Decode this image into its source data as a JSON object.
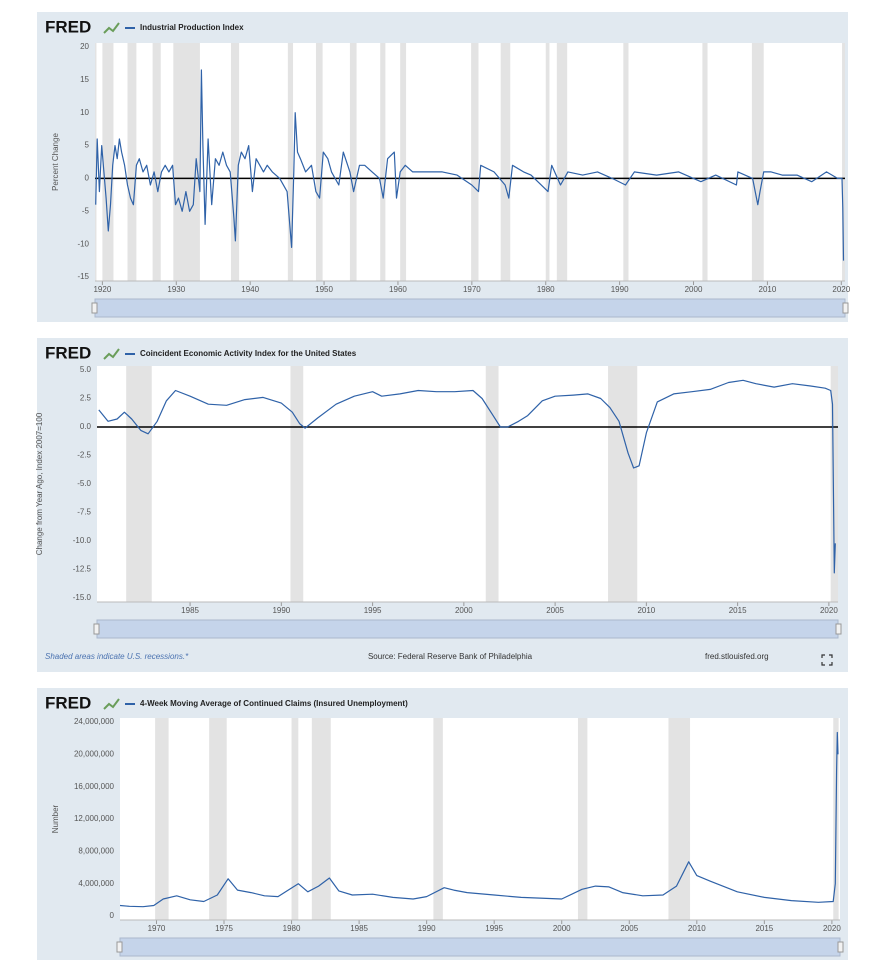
{
  "logo": "FRED",
  "chart_data": [
    {
      "type": "line",
      "ylabel": "Percent Change",
      "x": [
        1919.1,
        1919.3,
        1919.6,
        1919.9,
        1920.2,
        1920.5,
        1920.8,
        1921.1,
        1921.4,
        1921.7,
        1922.0,
        1922.3,
        1922.6,
        1923.0,
        1923.4,
        1923.8,
        1924.2,
        1924.6,
        1925.0,
        1925.5,
        1926.0,
        1926.5,
        1927.0,
        1927.5,
        1928.0,
        1928.5,
        1929.0,
        1929.5,
        1929.9,
        1930.3,
        1930.8,
        1931.3,
        1931.8,
        1932.3,
        1932.7,
        1933.2,
        1933.4,
        1933.6,
        1933.9,
        1934.3,
        1934.8,
        1935.3,
        1935.8,
        1936.3,
        1936.8,
        1937.3,
        1937.8,
        1938.0,
        1938.4,
        1938.8,
        1939.3,
        1939.8,
        1940.3,
        1940.8,
        1941.3,
        1941.8,
        1942.3,
        1943.0,
        1944.0,
        1945.0,
        1945.6,
        1945.9,
        1946.1,
        1946.4,
        1946.8,
        1947.5,
        1948.3,
        1948.9,
        1949.4,
        1949.9,
        1950.5,
        1951.0,
        1952.0,
        1952.6,
        1953.5,
        1954.0,
        1954.8,
        1955.5,
        1956.5,
        1957.5,
        1958.0,
        1958.6,
        1959.5,
        1959.8,
        1960.3,
        1961.0,
        1962.0,
        1964.0,
        1966.0,
        1968.0,
        1970.0,
        1970.9,
        1971.2,
        1973.0,
        1974.5,
        1975.0,
        1975.5,
        1977.0,
        1978.0,
        1980.3,
        1980.8,
        1982.0,
        1983.0,
        1985.0,
        1987.0,
        1989.0,
        1990.8,
        1992.0,
        1995.0,
        1998.0,
        2001.0,
        2003.0,
        2005.8,
        2006.0,
        2008.0,
        2008.7,
        2009.0,
        2009.5,
        2010.5,
        2012.0,
        2014.0,
        2016.0,
        2018.0,
        2019.5,
        2020.1,
        2020.2,
        2020.3
      ],
      "series": [
        {
          "name": "Industrial Production Index",
          "color": "#2f62a8",
          "values": [
            -4,
            6,
            -2,
            5,
            1,
            -3,
            -8,
            -4,
            2,
            5,
            3,
            6,
            4,
            2,
            -1,
            -3,
            -4,
            2,
            3,
            1,
            2,
            -1,
            1,
            -2,
            1,
            2,
            1,
            2,
            -4,
            -3,
            -5,
            -2,
            -5,
            -4,
            3,
            -2,
            16.5,
            5,
            -7,
            6,
            -4,
            3,
            2,
            4,
            2,
            1,
            -6,
            -9.5,
            2,
            4,
            3,
            5,
            -2,
            3,
            2,
            1,
            2,
            1,
            0,
            -2,
            -10.5,
            1,
            10,
            4,
            3,
            1,
            2,
            -2,
            -3,
            4,
            3,
            1,
            -1,
            4,
            1,
            -2,
            2,
            2,
            1,
            0,
            -3,
            3,
            4,
            -3,
            1,
            2,
            1,
            1,
            1,
            0.5,
            -1,
            -2,
            2,
            1,
            -1,
            -3,
            2,
            1,
            0.5,
            -2,
            2,
            -1,
            1,
            0.5,
            1,
            0,
            -1,
            1,
            0.5,
            1,
            -0.5,
            0.5,
            -1,
            1,
            0,
            -4,
            -2,
            1,
            1,
            0.5,
            0.5,
            -0.5,
            1,
            0,
            0,
            -4.5,
            -12.5
          ]
        }
      ],
      "xlim": [
        1919,
        2020.5
      ],
      "ylim": [
        -15,
        20
      ],
      "xticks": [
        1920,
        1930,
        1940,
        1950,
        1960,
        1970,
        1980,
        1990,
        2000,
        2010,
        2020
      ],
      "yticks": [
        -15,
        -10,
        -5,
        0,
        5,
        10,
        15,
        20
      ],
      "zero_line": true,
      "recessions": [
        [
          1918.7,
          1919.2
        ],
        [
          1920.0,
          1921.5
        ],
        [
          1923.4,
          1924.6
        ],
        [
          1926.8,
          1927.9
        ],
        [
          1929.6,
          1933.2
        ],
        [
          1937.4,
          1938.5
        ],
        [
          1945.1,
          1945.8
        ],
        [
          1948.9,
          1949.8
        ],
        [
          1953.5,
          1954.4
        ],
        [
          1957.6,
          1958.3
        ],
        [
          1960.3,
          1961.1
        ],
        [
          1969.9,
          1970.9
        ],
        [
          1973.9,
          1975.2
        ],
        [
          1980.0,
          1980.5
        ],
        [
          1981.5,
          1982.9
        ],
        [
          1990.5,
          1991.2
        ],
        [
          2001.2,
          2001.9
        ],
        [
          2007.9,
          2009.5
        ],
        [
          2020.1,
          2020.5
        ]
      ]
    },
    {
      "type": "line",
      "ylabel": "Change from Year Ago, Index 2007=100",
      "x": [
        1980.0,
        1980.5,
        1981.0,
        1981.4,
        1981.8,
        1982.3,
        1982.7,
        1983.2,
        1983.7,
        1984.2,
        1985.0,
        1986.0,
        1987.0,
        1988.0,
        1989.0,
        1990.0,
        1990.6,
        1991.0,
        1991.3,
        1992.0,
        1993.0,
        1994.0,
        1995.0,
        1995.5,
        1996.5,
        1997.5,
        1998.5,
        1999.5,
        2000.5,
        2001.0,
        2001.6,
        2002.0,
        2002.4,
        2003.0,
        2003.5,
        2004.3,
        2005.0,
        2006.0,
        2006.8,
        2007.5,
        2008.0,
        2008.5,
        2009.0,
        2009.3,
        2009.6,
        2010.0,
        2010.6,
        2011.5,
        2012.5,
        2013.5,
        2014.5,
        2015.3,
        2016.0,
        2017.0,
        2018.0,
        2019.0,
        2019.8,
        2020.1,
        2020.2,
        2020.3,
        2020.35
      ],
      "series": [
        {
          "name": "Coincident Economic Activity Index for the United States",
          "color": "#2f62a8",
          "values": [
            1.5,
            0.5,
            0.7,
            1.3,
            0.7,
            -0.3,
            -0.6,
            0.5,
            2.3,
            3.2,
            2.7,
            2.0,
            1.9,
            2.4,
            2.6,
            2.1,
            1.3,
            0.3,
            -0.1,
            0.8,
            2.0,
            2.7,
            3.1,
            2.7,
            2.9,
            3.2,
            3.1,
            3.1,
            3.2,
            2.5,
            1.0,
            0.0,
            0.0,
            0.5,
            1.0,
            2.3,
            2.7,
            2.8,
            2.9,
            2.5,
            1.7,
            0.5,
            -2.3,
            -3.6,
            -3.4,
            -0.5,
            2.2,
            2.9,
            3.1,
            3.3,
            3.9,
            4.1,
            3.8,
            3.5,
            3.8,
            3.6,
            3.4,
            3.2,
            2.0,
            -12.8,
            -10.2
          ]
        }
      ],
      "xlim": [
        1979.9,
        2020.5
      ],
      "ylim": [
        -15,
        5
      ],
      "xticks": [
        1985,
        1990,
        1995,
        2000,
        2005,
        2010,
        2015,
        2020
      ],
      "yticks": [
        {
          "value": -15,
          "label": "-15.0"
        },
        -12.5,
        {
          "value": -10,
          "label": "-10.0"
        },
        -7.5,
        {
          "value": -5,
          "label": "-5.0"
        },
        -2.5,
        {
          "value": 0,
          "label": "0.0"
        },
        2.5,
        {
          "value": 5,
          "label": "5.0"
        }
      ],
      "zero_line": true,
      "recessions": [
        [
          1981.5,
          1982.9
        ],
        [
          1990.5,
          1991.2
        ],
        [
          2001.2,
          2001.9
        ],
        [
          2007.9,
          2009.5
        ],
        [
          2020.1,
          2020.5
        ]
      ],
      "note": "Shaded areas indicate U.S. recessions.*",
      "source": "Source: Federal Reserve Bank of Philadelphia",
      "site": "fred.stlouisfed.org"
    },
    {
      "type": "line",
      "ylabel": "Number",
      "x": [
        1967.3,
        1968,
        1969,
        1969.8,
        1970.5,
        1971.5,
        1972.5,
        1973.5,
        1974.5,
        1975.3,
        1976,
        1977,
        1978,
        1979,
        1980.5,
        1981.2,
        1982.0,
        1982.8,
        1983.5,
        1984.5,
        1986,
        1987.5,
        1989,
        1990,
        1991.3,
        1992,
        1993,
        1995,
        1997,
        2000,
        2001.5,
        2002.5,
        2003.5,
        2004.5,
        2006,
        2007.5,
        2008.5,
        2009.4,
        2010,
        2011,
        2013,
        2015,
        2017,
        2019,
        2020.1,
        2020.25,
        2020.35,
        2020.4,
        2020.45
      ],
      "series": [
        {
          "name": "4-Week Moving Average of Continued Claims (Insured Unemployment)",
          "color": "#2f62a8",
          "values": [
            1300000,
            1200000,
            1150000,
            1300000,
            2100000,
            2500000,
            2000000,
            1800000,
            2600000,
            4600000,
            3200000,
            2900000,
            2500000,
            2400000,
            4000000,
            3000000,
            3700000,
            4700000,
            3100000,
            2600000,
            2700000,
            2300000,
            2100000,
            2400000,
            3500000,
            3200000,
            2900000,
            2600000,
            2300000,
            2100000,
            3300000,
            3700000,
            3600000,
            2900000,
            2500000,
            2600000,
            3700000,
            6700000,
            5000000,
            4300000,
            3000000,
            2300000,
            1900000,
            1700000,
            1800000,
            4000000,
            18000000,
            22700000,
            20000000
          ]
        }
      ],
      "xlim": [
        1967.3,
        2020.6
      ],
      "ylim": [
        0,
        24000000
      ],
      "xticks": [
        1970,
        1975,
        1980,
        1985,
        1990,
        1995,
        2000,
        2005,
        2010,
        2015,
        2020
      ],
      "yticks": [
        0,
        {
          "value": 4000000,
          "label": "4,000,000"
        },
        {
          "value": 8000000,
          "label": "8,000,000"
        },
        {
          "value": 12000000,
          "label": "12,000,000"
        },
        {
          "value": 16000000,
          "label": "16,000,000"
        },
        {
          "value": 20000000,
          "label": "20,000,000"
        },
        {
          "value": 24000000,
          "label": "24,000,000"
        }
      ],
      "zero_line": false,
      "recessions": [
        [
          1969.9,
          1970.9
        ],
        [
          1973.9,
          1975.2
        ],
        [
          1980.0,
          1980.5
        ],
        [
          1981.5,
          1982.9
        ],
        [
          1990.5,
          1991.2
        ],
        [
          2001.2,
          2001.9
        ],
        [
          2007.9,
          2009.5
        ],
        [
          2020.1,
          2020.5
        ]
      ]
    }
  ]
}
